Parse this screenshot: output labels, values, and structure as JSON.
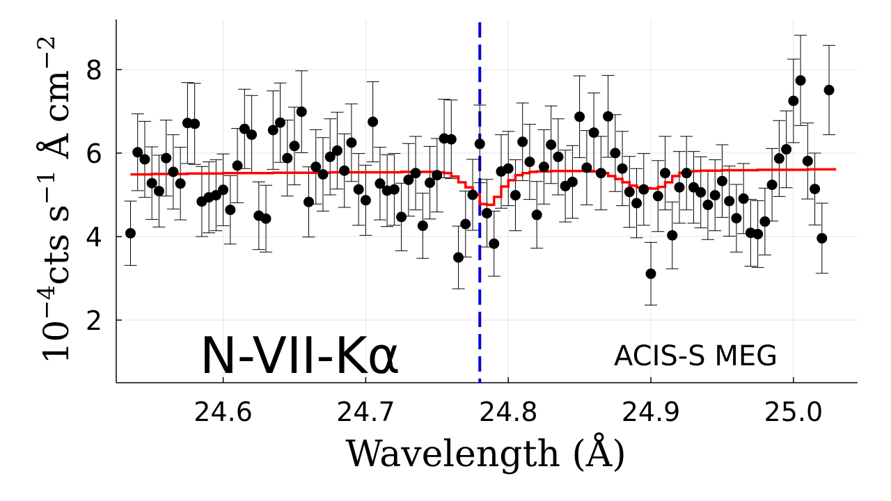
{
  "chart_data": {
    "type": "scatter",
    "xlabel_main": "Wavelength",
    "xlabel_unit": "(Å)",
    "ylabel_prefix": "10",
    "ylabel_prefix_exp": "−4",
    "ylabel_cts": "cts",
    "ylabel_s": "s",
    "ylabel_s_exp": "−1",
    "ylabel_angstrom": "Å",
    "ylabel_cm": "cm",
    "ylabel_cm_exp": "−2",
    "xlim": [
      24.525,
      25.045
    ],
    "ylim": [
      0.5,
      9.2
    ],
    "xticks": [
      24.6,
      24.7,
      24.8,
      24.9,
      25.0
    ],
    "xtick_labels": [
      "24.6",
      "24.7",
      "24.8",
      "24.9",
      "25.0"
    ],
    "yticks": [
      2,
      4,
      6,
      8
    ],
    "ytick_labels": [
      "2",
      "4",
      "6",
      "8"
    ],
    "grid": true,
    "line_position": 24.78,
    "annotations": {
      "ion": "N-VII-Kα",
      "instrument": "ACIS-S MEG"
    },
    "series": [
      {
        "name": "data",
        "color": "#000000",
        "x": [
          24.535,
          24.54,
          24.545,
          24.55,
          24.555,
          24.56,
          24.565,
          24.57,
          24.575,
          24.58,
          24.585,
          24.59,
          24.595,
          24.6,
          24.605,
          24.61,
          24.615,
          24.62,
          24.625,
          24.63,
          24.635,
          24.64,
          24.645,
          24.65,
          24.655,
          24.66,
          24.665,
          24.67,
          24.675,
          24.68,
          24.685,
          24.69,
          24.695,
          24.7,
          24.705,
          24.71,
          24.715,
          24.72,
          24.725,
          24.73,
          24.735,
          24.74,
          24.745,
          24.75,
          24.755,
          24.76,
          24.765,
          24.77,
          24.775,
          24.78,
          24.785,
          24.79,
          24.795,
          24.8,
          24.805,
          24.81,
          24.815,
          24.82,
          24.825,
          24.83,
          24.835,
          24.84,
          24.845,
          24.85,
          24.855,
          24.86,
          24.865,
          24.87,
          24.875,
          24.88,
          24.885,
          24.89,
          24.895,
          24.9,
          24.905,
          24.91,
          24.915,
          24.92,
          24.925,
          24.93,
          24.935,
          24.94,
          24.945,
          24.95,
          24.955,
          24.96,
          24.965,
          24.97,
          24.975,
          24.98,
          24.985,
          24.99,
          24.995,
          25.0,
          25.005,
          25.01,
          25.015,
          25.02,
          25.025
        ],
        "y": [
          4.08,
          6.02,
          5.85,
          5.28,
          5.09,
          5.88,
          5.55,
          5.27,
          6.72,
          6.7,
          4.84,
          4.94,
          4.99,
          5.12,
          4.64,
          5.7,
          6.58,
          6.44,
          4.5,
          4.43,
          6.55,
          6.73,
          5.88,
          6.17,
          6.99,
          4.83,
          5.67,
          5.49,
          5.91,
          6.06,
          5.58,
          6.25,
          5.13,
          4.87,
          6.75,
          5.27,
          5.1,
          5.13,
          4.47,
          5.36,
          5.52,
          4.26,
          5.29,
          5.47,
          6.35,
          6.33,
          3.5,
          4.3,
          5.0,
          6.22,
          4.56,
          3.83,
          5.56,
          5.63,
          4.99,
          6.27,
          5.79,
          4.52,
          5.67,
          6.2,
          5.91,
          5.21,
          5.31,
          6.87,
          5.65,
          6.49,
          5.52,
          6.88,
          6.0,
          5.63,
          5.07,
          4.8,
          5.13,
          3.11,
          4.97,
          5.52,
          4.03,
          5.18,
          5.52,
          5.18,
          5.06,
          4.76,
          4.99,
          5.33,
          4.85,
          4.44,
          4.91,
          4.09,
          4.06,
          4.36,
          5.24,
          5.87,
          6.09,
          7.25,
          7.74,
          5.81,
          5.14,
          3.96,
          7.51
        ],
        "err": [
          0.77,
          0.92,
          0.91,
          0.87,
          0.86,
          0.91,
          0.89,
          0.87,
          0.97,
          0.97,
          0.84,
          0.85,
          0.85,
          0.86,
          0.82,
          0.89,
          0.95,
          0.94,
          0.81,
          0.8,
          0.94,
          0.95,
          0.91,
          0.93,
          0.98,
          0.84,
          0.89,
          0.88,
          0.91,
          0.92,
          0.88,
          0.93,
          0.86,
          0.84,
          0.96,
          0.87,
          0.86,
          0.86,
          0.81,
          0.87,
          0.88,
          0.78,
          0.87,
          0.88,
          0.94,
          0.94,
          0.75,
          0.79,
          0.85,
          0.93,
          0.81,
          0.78,
          0.88,
          0.89,
          0.85,
          0.93,
          0.9,
          0.8,
          0.89,
          0.93,
          0.91,
          0.86,
          0.87,
          0.98,
          0.89,
          0.95,
          0.88,
          0.98,
          0.92,
          0.89,
          0.85,
          0.83,
          0.86,
          0.75,
          0.85,
          0.88,
          0.8,
          0.86,
          0.88,
          0.86,
          0.85,
          0.83,
          0.85,
          0.87,
          0.84,
          0.81,
          0.84,
          0.8,
          0.8,
          0.8,
          0.87,
          0.91,
          0.92,
          1.0,
          1.08,
          0.91,
          0.86,
          0.84,
          1.07
        ]
      },
      {
        "name": "model",
        "color": "#ff0000",
        "x": [
          24.535,
          24.54,
          24.545,
          24.55,
          24.555,
          24.56,
          24.565,
          24.57,
          24.575,
          24.58,
          24.585,
          24.59,
          24.595,
          24.6,
          24.605,
          24.61,
          24.615,
          24.62,
          24.625,
          24.63,
          24.635,
          24.64,
          24.645,
          24.65,
          24.655,
          24.66,
          24.665,
          24.67,
          24.675,
          24.68,
          24.685,
          24.69,
          24.695,
          24.7,
          24.705,
          24.71,
          24.715,
          24.72,
          24.725,
          24.73,
          24.735,
          24.74,
          24.745,
          24.75,
          24.755,
          24.76,
          24.765,
          24.77,
          24.775,
          24.78,
          24.785,
          24.79,
          24.795,
          24.8,
          24.805,
          24.81,
          24.815,
          24.82,
          24.825,
          24.83,
          24.835,
          24.84,
          24.845,
          24.85,
          24.855,
          24.86,
          24.865,
          24.87,
          24.875,
          24.88,
          24.885,
          24.89,
          24.895,
          24.9,
          24.905,
          24.91,
          24.915,
          24.92,
          24.925,
          24.93,
          24.935,
          24.94,
          24.945,
          24.95,
          24.955,
          24.96,
          24.965,
          24.97,
          24.975,
          24.98,
          24.985,
          24.99,
          24.995,
          25.0,
          25.005,
          25.01,
          25.015,
          25.02,
          25.025,
          25.03
        ],
        "y": [
          5.49,
          5.49,
          5.49,
          5.5,
          5.5,
          5.5,
          5.5,
          5.5,
          5.51,
          5.51,
          5.51,
          5.51,
          5.51,
          5.52,
          5.52,
          5.52,
          5.52,
          5.52,
          5.52,
          5.52,
          5.53,
          5.53,
          5.53,
          5.53,
          5.53,
          5.53,
          5.53,
          5.53,
          5.54,
          5.54,
          5.54,
          5.54,
          5.54,
          5.54,
          5.54,
          5.54,
          5.54,
          5.54,
          5.55,
          5.55,
          5.55,
          5.55,
          5.55,
          5.54,
          5.52,
          5.44,
          5.3,
          5.18,
          5.0,
          4.78,
          4.76,
          4.95,
          5.2,
          5.35,
          5.47,
          5.52,
          5.55,
          5.56,
          5.56,
          5.57,
          5.57,
          5.57,
          5.57,
          5.57,
          5.57,
          5.56,
          5.52,
          5.45,
          5.38,
          5.3,
          5.22,
          5.18,
          5.16,
          5.15,
          5.19,
          5.3,
          5.45,
          5.53,
          5.56,
          5.57,
          5.58,
          5.58,
          5.58,
          5.59,
          5.59,
          5.59,
          5.59,
          5.59,
          5.6,
          5.6,
          5.6,
          5.6,
          5.6,
          5.6,
          5.6,
          5.61,
          5.61,
          5.61,
          5.61,
          5.61
        ]
      }
    ]
  }
}
